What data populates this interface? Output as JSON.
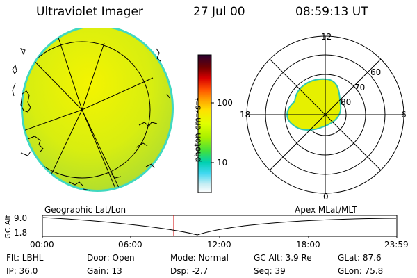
{
  "header": {
    "instrument": "Ultraviolet Imager",
    "date": "27 Jul 00",
    "time": "08:59:13 UT"
  },
  "colorbar": {
    "unit_label": "photon cm⁻²s⁻¹",
    "ticks": [
      "100",
      "10"
    ],
    "scale": "log",
    "colors": [
      "#2a0030",
      "#7a0000",
      "#e00000",
      "#ff8000",
      "#ffc000",
      "#ffff00",
      "#b0ff00",
      "#40e000",
      "#00c8a0",
      "#00c0ff",
      "#c0f0ff",
      "#ffffff"
    ]
  },
  "polar_plot": {
    "hour_labels": {
      "top": "12",
      "left": "18",
      "right": "6",
      "bottom": "0"
    },
    "lat_labels": [
      "60",
      "70",
      "80"
    ]
  },
  "timeline": {
    "y_axis_title": "GC Alt",
    "y_ticks": [
      "9.0",
      "1.8"
    ],
    "left_title": "Geographic Lat/Lon",
    "right_title": "Apex MLat/MLT",
    "x_ticks": [
      "00:00",
      "06:00",
      "12:00",
      "18:00",
      "23:59"
    ],
    "current_marker_time": "08:59"
  },
  "status": {
    "filter": "Flt: LBHL",
    "door": "Door: Open",
    "mode": "Mode: Normal",
    "gc_alt": "GC Alt: 3.9 Re",
    "glat": "GLat: 87.6",
    "ip": "IP: 36.0",
    "gain": "Gain: 13",
    "dsp": "Dsp:    -2.7",
    "seq": "Seq: 39",
    "glon": "GLon: 75.8"
  }
}
